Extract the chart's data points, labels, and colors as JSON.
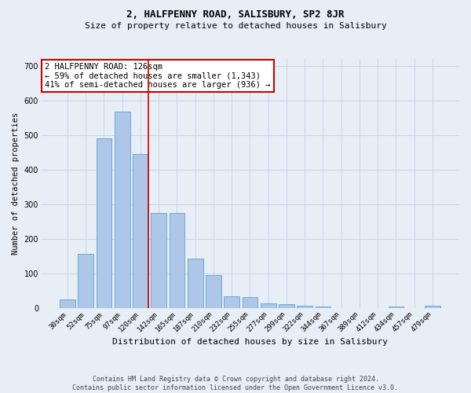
{
  "title": "2, HALFPENNY ROAD, SALISBURY, SP2 8JR",
  "subtitle": "Size of property relative to detached houses in Salisbury",
  "xlabel": "Distribution of detached houses by size in Salisbury",
  "ylabel": "Number of detached properties",
  "footer_line1": "Contains HM Land Registry data © Crown copyright and database right 2024.",
  "footer_line2": "Contains public sector information licensed under the Open Government Licence v3.0.",
  "categories": [
    "30sqm",
    "52sqm",
    "75sqm",
    "97sqm",
    "120sqm",
    "142sqm",
    "165sqm",
    "187sqm",
    "210sqm",
    "232sqm",
    "255sqm",
    "277sqm",
    "299sqm",
    "322sqm",
    "344sqm",
    "367sqm",
    "389sqm",
    "412sqm",
    "434sqm",
    "457sqm",
    "479sqm"
  ],
  "values": [
    25,
    157,
    492,
    567,
    445,
    275,
    275,
    145,
    97,
    35,
    32,
    15,
    13,
    7,
    5,
    1,
    0,
    0,
    5,
    0,
    7
  ],
  "bar_color": "#aec6e8",
  "bar_edge_color": "#6aaad4",
  "grid_color": "#c8d4e8",
  "background_color": "#e8eef6",
  "annotation_line1": "2 HALFPENNY ROAD: 126sqm",
  "annotation_line2": "← 59% of detached houses are smaller (1,343)",
  "annotation_line3": "41% of semi-detached houses are larger (936) →",
  "annotation_box_color": "#ffffff",
  "annotation_box_edge": "#cc0000",
  "vline_x_index": 4,
  "vline_color": "#cc0000",
  "ylim": [
    0,
    720
  ],
  "yticks": [
    0,
    100,
    200,
    300,
    400,
    500,
    600,
    700
  ],
  "title_fontsize": 9,
  "subtitle_fontsize": 8,
  "ylabel_fontsize": 7.5,
  "xlabel_fontsize": 8,
  "tick_fontsize": 6.5,
  "annotation_fontsize": 7.5,
  "footer_fontsize": 6
}
